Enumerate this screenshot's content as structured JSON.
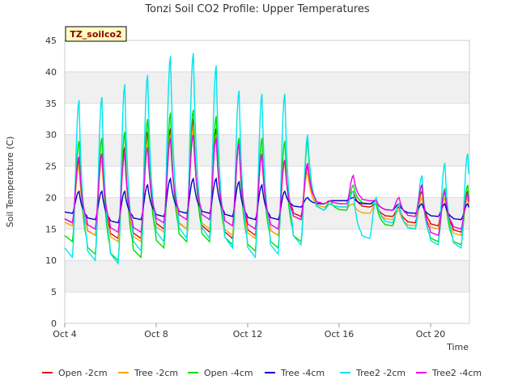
{
  "chart_data": {
    "type": "line",
    "title": "Tonzi Soil CO2 Profile: Upper Temperatures",
    "xlabel": "Time",
    "ylabel": "Soil Temperature (C)",
    "tag": "TZ_soilco2",
    "xlim": [
      4,
      21.7
    ],
    "ylim": [
      0,
      45
    ],
    "x_ticks": [
      {
        "x": 4,
        "label": "Oct 4"
      },
      {
        "x": 8,
        "label": "Oct 8"
      },
      {
        "x": 12,
        "label": "Oct 12"
      },
      {
        "x": 16,
        "label": "Oct 16"
      },
      {
        "x": 20,
        "label": "Oct 20"
      }
    ],
    "y_ticks": [
      0,
      5,
      10,
      15,
      20,
      25,
      30,
      35,
      40,
      45
    ],
    "grid": "horizontal bands",
    "legend_position": "bottom",
    "series": [
      {
        "name": "Open -2cm",
        "color": "#e60000",
        "min": [
          16,
          14,
          13.5,
          13.5,
          15,
          15,
          14.5,
          13.5,
          14,
          14,
          17,
          19,
          19.5,
          18.5,
          17,
          16,
          15.5,
          14.5,
          14
        ],
        "max": [
          26,
          27,
          28,
          30.5,
          31,
          32.5,
          31,
          29,
          27,
          26,
          25,
          19.5,
          21,
          19,
          18.5,
          21,
          21,
          21,
          22
        ],
        "end": 16.5
      },
      {
        "name": "Tree -2cm",
        "color": "#ffa500",
        "min": [
          15.5,
          14,
          13,
          13,
          14.5,
          15,
          15,
          14,
          13.5,
          14,
          16.5,
          18.5,
          18.5,
          17.5,
          16.5,
          15.5,
          15,
          14,
          13.5
        ],
        "max": [
          25,
          26,
          27,
          29,
          30,
          31,
          30,
          28.5,
          27,
          25.5,
          24,
          19,
          19,
          19,
          18,
          20,
          20,
          20,
          21.5
        ],
        "end": 17.5
      },
      {
        "name": "Open -4cm",
        "color": "#00dd00",
        "min": [
          13,
          11,
          10,
          10.5,
          12,
          13,
          13,
          12.5,
          11.5,
          12,
          13,
          18,
          18,
          19,
          15.5,
          15,
          13,
          12.5,
          12
        ],
        "max": [
          29,
          29.5,
          30.5,
          32.5,
          33.5,
          34,
          33,
          29.5,
          29.5,
          29,
          29,
          19.5,
          22,
          19,
          19,
          22,
          21.5,
          22,
          23.5
        ],
        "end": 15.5
      },
      {
        "name": "Tree -4cm",
        "color": "#0000cc",
        "min": [
          17.5,
          16.5,
          16,
          16.5,
          17,
          17.5,
          17.5,
          17,
          16.5,
          16.5,
          18.5,
          19,
          19.5,
          19,
          18,
          17.5,
          17,
          16.5,
          16.5
        ],
        "max": [
          21,
          21,
          21,
          22,
          23,
          23,
          23,
          22.5,
          22,
          21,
          20,
          19.5,
          20,
          19.5,
          19,
          19,
          19,
          19,
          19
        ],
        "end": 18
      },
      {
        "name": "Tree2 -2cm",
        "color": "#00e5ee",
        "min": [
          10.5,
          10,
          9.5,
          11.5,
          13,
          13.5,
          13.5,
          12,
          10.5,
          11,
          12.5,
          18,
          18.5,
          13.5,
          16,
          15,
          12.5,
          12,
          12
        ],
        "max": [
          35.5,
          36,
          38,
          39.5,
          42.5,
          43,
          41,
          37,
          36.5,
          36.5,
          30,
          19,
          21,
          20,
          19,
          23.5,
          25.5,
          27,
          30
        ],
        "end": 15
      },
      {
        "name": "Tree2 -4cm",
        "color": "#ee00ee",
        "min": [
          16,
          15,
          14.5,
          14.5,
          16,
          16.5,
          16.5,
          15.5,
          15,
          15,
          16.5,
          19,
          19,
          19.5,
          18,
          17,
          14,
          15,
          15
        ],
        "max": [
          26.5,
          27,
          27,
          28,
          29.5,
          30,
          29.5,
          28.5,
          27,
          26,
          25.5,
          19.5,
          23.5,
          19.5,
          20,
          22,
          21,
          20.5,
          21.5
        ],
        "end": 17
      }
    ]
  }
}
